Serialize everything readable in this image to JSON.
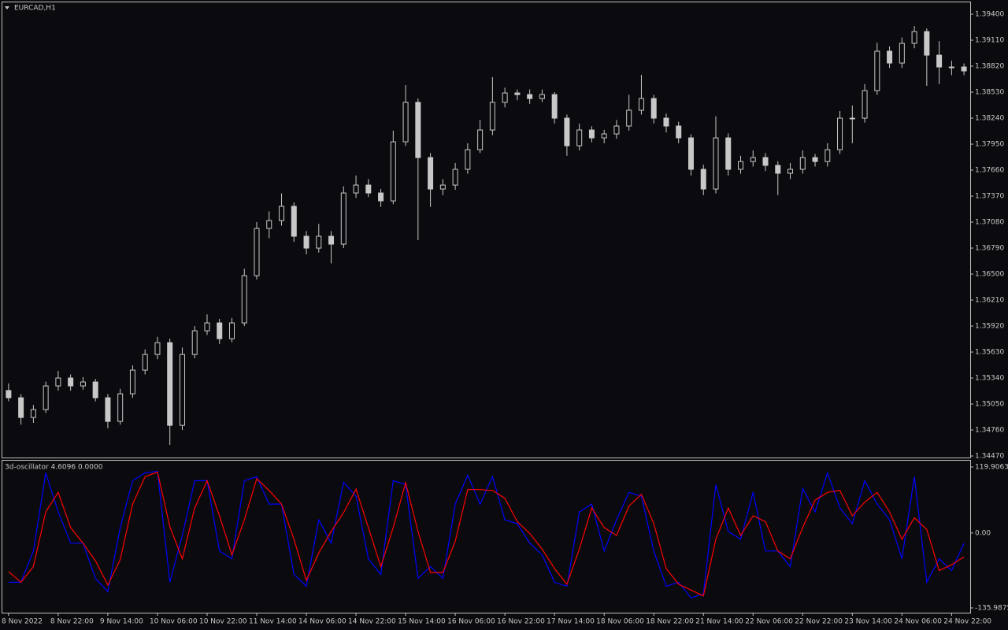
{
  "chart_data": [
    {
      "type": "candlestick",
      "title": "EURCAD,H1",
      "color": "#c8c8c8",
      "ylim": [
        1.34444,
        1.39532
      ],
      "yticks": [
        {
          "value": 1.394,
          "label": "1.39400"
        },
        {
          "value": 1.3911,
          "label": "1.39110"
        },
        {
          "value": 1.3882,
          "label": "1.38820"
        },
        {
          "value": 1.3853,
          "label": "1.38530"
        },
        {
          "value": 1.3824,
          "label": "1.38240"
        },
        {
          "value": 1.3795,
          "label": "1.37950"
        },
        {
          "value": 1.3766,
          "label": "1.37660"
        },
        {
          "value": 1.3737,
          "label": "1.37370"
        },
        {
          "value": 1.3708,
          "label": "1.37080"
        },
        {
          "value": 1.3679,
          "label": "1.36790"
        },
        {
          "value": 1.365,
          "label": "1.36500"
        },
        {
          "value": 1.3621,
          "label": "1.36210"
        },
        {
          "value": 1.3592,
          "label": "1.35920"
        },
        {
          "value": 1.3563,
          "label": "1.35630"
        },
        {
          "value": 1.3534,
          "label": "1.35340"
        },
        {
          "value": 1.3505,
          "label": "1.35050"
        },
        {
          "value": 1.3476,
          "label": "1.34760"
        },
        {
          "value": 1.3447,
          "label": "1.34470"
        }
      ],
      "ohlc": [
        [
          1.352,
          1.3528,
          1.3508,
          1.3512
        ],
        [
          1.3512,
          1.3516,
          1.3482,
          1.349
        ],
        [
          1.349,
          1.3504,
          1.3484,
          1.34988
        ],
        [
          1.34988,
          1.353,
          1.3495,
          1.35252
        ],
        [
          1.35252,
          1.3542,
          1.352,
          1.3534
        ],
        [
          1.3534,
          1.3538,
          1.352,
          1.35252
        ],
        [
          1.35252,
          1.3535,
          1.3521,
          1.35296
        ],
        [
          1.35296,
          1.3533,
          1.3508,
          1.3512
        ],
        [
          1.3512,
          1.3516,
          1.3478,
          1.34856
        ],
        [
          1.34856,
          1.3522,
          1.3482,
          1.35164
        ],
        [
          1.35164,
          1.3548,
          1.3512,
          1.35428
        ],
        [
          1.35428,
          1.3566,
          1.3538,
          1.35603
        ],
        [
          1.35603,
          1.358,
          1.3555,
          1.35735
        ],
        [
          1.35735,
          1.3578,
          1.34593,
          1.34812
        ],
        [
          1.34812,
          1.3568,
          1.3476,
          1.35603
        ],
        [
          1.35603,
          1.3592,
          1.3556,
          1.35867
        ],
        [
          1.35867,
          1.3605,
          1.3582,
          1.35955
        ],
        [
          1.35955,
          1.36,
          1.3572,
          1.35779
        ],
        [
          1.35779,
          1.3601,
          1.3574,
          1.35955
        ],
        [
          1.35955,
          1.3656,
          1.3592,
          1.36482
        ],
        [
          1.36482,
          1.3708,
          1.3644,
          1.37009
        ],
        [
          1.37009,
          1.372,
          1.369,
          1.37097
        ],
        [
          1.37097,
          1.374,
          1.3704,
          1.37256
        ],
        [
          1.37256,
          1.373,
          1.3686,
          1.36922
        ],
        [
          1.36922,
          1.3698,
          1.3672,
          1.3679
        ],
        [
          1.3679,
          1.3706,
          1.3674,
          1.36922
        ],
        [
          1.36922,
          1.3698,
          1.3662,
          1.36834
        ],
        [
          1.36834,
          1.3748,
          1.3679,
          1.37405
        ],
        [
          1.37405,
          1.376,
          1.3735,
          1.37493
        ],
        [
          1.37493,
          1.3756,
          1.3736,
          1.37405
        ],
        [
          1.37405,
          1.3745,
          1.3725,
          1.37317
        ],
        [
          1.37317,
          1.381,
          1.3728,
          1.37976
        ],
        [
          1.37976,
          1.38609,
          1.3793,
          1.38416
        ],
        [
          1.38416,
          1.3846,
          1.36878,
          1.378
        ],
        [
          1.378,
          1.3785,
          1.3725,
          1.37449
        ],
        [
          1.37449,
          1.3756,
          1.3738,
          1.37493
        ],
        [
          1.37493,
          1.3774,
          1.3744,
          1.37669
        ],
        [
          1.37669,
          1.3796,
          1.3762,
          1.37888
        ],
        [
          1.37888,
          1.3822,
          1.3785,
          1.38108
        ],
        [
          1.38108,
          1.38697,
          1.3805,
          1.38416
        ],
        [
          1.38416,
          1.3858,
          1.3836,
          1.38521
        ],
        [
          1.38521,
          1.3856,
          1.3844,
          1.38503
        ],
        [
          1.38503,
          1.3856,
          1.384,
          1.38459
        ],
        [
          1.38459,
          1.3856,
          1.3842,
          1.38503
        ],
        [
          1.38503,
          1.3853,
          1.3818,
          1.3824
        ],
        [
          1.3824,
          1.3828,
          1.3782,
          1.37932
        ],
        [
          1.37932,
          1.3818,
          1.3788,
          1.38108
        ],
        [
          1.38108,
          1.3815,
          1.3797,
          1.3802
        ],
        [
          1.3802,
          1.3811,
          1.3796,
          1.38064
        ],
        [
          1.38064,
          1.3822,
          1.3801,
          1.38152
        ],
        [
          1.38152,
          1.385,
          1.381,
          1.38328
        ],
        [
          1.38328,
          1.38723,
          1.3828,
          1.38459
        ],
        [
          1.38459,
          1.385,
          1.3818,
          1.3824
        ],
        [
          1.3824,
          1.3829,
          1.3808,
          1.38152
        ],
        [
          1.38152,
          1.382,
          1.3796,
          1.3802
        ],
        [
          1.3802,
          1.3806,
          1.376,
          1.37669
        ],
        [
          1.37669,
          1.3772,
          1.3738,
          1.37449
        ],
        [
          1.37449,
          1.3826,
          1.374,
          1.3802
        ],
        [
          1.3802,
          1.3807,
          1.376,
          1.37669
        ],
        [
          1.37669,
          1.3782,
          1.3762,
          1.37756
        ],
        [
          1.37756,
          1.3788,
          1.377,
          1.378
        ],
        [
          1.378,
          1.3785,
          1.3765,
          1.37713
        ],
        [
          1.37713,
          1.3776,
          1.3738,
          1.37625
        ],
        [
          1.37625,
          1.3774,
          1.3756,
          1.37669
        ],
        [
          1.37669,
          1.3788,
          1.3762,
          1.378
        ],
        [
          1.378,
          1.3784,
          1.377,
          1.37756
        ],
        [
          1.37756,
          1.3796,
          1.377,
          1.37888
        ],
        [
          1.37888,
          1.3832,
          1.3784,
          1.3824
        ],
        [
          1.3824,
          1.3838,
          1.3796,
          1.3824
        ],
        [
          1.3824,
          1.3862,
          1.3819,
          1.38547
        ],
        [
          1.38547,
          1.3908,
          1.385,
          1.38987
        ],
        [
          1.38987,
          1.3904,
          1.388,
          1.38855
        ],
        [
          1.38855,
          1.3914,
          1.388,
          1.39075
        ],
        [
          1.39075,
          1.39268,
          1.3902,
          1.39206
        ],
        [
          1.39206,
          1.3924,
          1.386,
          1.38943
        ],
        [
          1.38943,
          1.391,
          1.3862,
          1.38811
        ],
        [
          1.38811,
          1.3888,
          1.3872,
          1.38811
        ],
        [
          1.38811,
          1.3885,
          1.3872,
          1.38767
        ]
      ]
    },
    {
      "type": "line",
      "title": "3d-oscillator 4.6096 0.0000",
      "ylim": [
        -144.6,
        131.3
      ],
      "yticks": [
        119.9063,
        {
          "value": 0,
          "label": "0.00"
        },
        -135.9875
      ],
      "categories": [
        "8 Nov 2022",
        null,
        null,
        null,
        "8 Nov 22:00",
        null,
        null,
        null,
        "9 Nov 14:00",
        null,
        null,
        null,
        "10 Nov 06:00",
        null,
        null,
        null,
        "10 Nov 22:00",
        null,
        null,
        null,
        "11 Nov 14:00",
        null,
        null,
        null,
        "14 Nov 06:00",
        null,
        null,
        null,
        "14 Nov 22:00",
        null,
        null,
        null,
        "15 Nov 14:00",
        null,
        null,
        null,
        "16 Nov 06:00",
        null,
        null,
        null,
        "16 Nov 22:00",
        null,
        null,
        null,
        "17 Nov 14:00",
        null,
        null,
        null,
        "18 Nov 06:00",
        null,
        null,
        null,
        "18 Nov 22:00",
        null,
        null,
        null,
        "21 Nov 14:00",
        null,
        null,
        null,
        "22 Nov 06:00",
        null,
        null,
        null,
        "22 Nov 22:00",
        null,
        null,
        null,
        "23 Nov 14:00",
        null,
        null,
        null,
        "24 Nov 06:00",
        null,
        null,
        null,
        "24 Nov 22:00",
        null
      ],
      "series": [
        {
          "color": "#0000ff",
          "values": [
            -89.4,
            -89.4,
            -32.6,
            109.2,
            38.3,
            -18.4,
            -18.4,
            -82.3,
            -106.4,
            9.9,
            95.0,
            109.2,
            112.1,
            -89.4,
            -4.3,
            95.0,
            95.0,
            -32.6,
            -46.8,
            95.0,
            102.1,
            52.5,
            52.5,
            -75.2,
            -96.5,
            24.1,
            -18.4,
            92.2,
            66.7,
            -46.8,
            -75.2,
            95.0,
            87.9,
            -82.3,
            -61.0,
            -82.3,
            52.5,
            105.0,
            52.5,
            102.1,
            24.1,
            17.0,
            -18.4,
            -39.7,
            -89.4,
            -96.5,
            38.3,
            52.5,
            -32.6,
            24.1,
            73.8,
            66.7,
            -32.6,
            -96.5,
            -89.4,
            -117.7,
            -110.6,
            87.9,
            2.8,
            -11.3,
            73.8,
            -32.6,
            -32.6,
            -61.0,
            80.9,
            38.3,
            109.2,
            45.4,
            17.0,
            95.0,
            52.5,
            24.1,
            -46.8,
            102.1,
            -89.4,
            -46.8,
            -68.1,
            -18.4
          ]
        },
        {
          "color": "#ff0000",
          "values": [
            -70,
            -89.4,
            -61.0,
            38.3,
            73.8,
            10.0,
            -18.4,
            -50.4,
            -94.4,
            -48.3,
            52.5,
            102.1,
            110.7,
            11.4,
            -46.9,
            45.4,
            95.0,
            31.2,
            -39.7,
            24.1,
            98.6,
            77.3,
            52.5,
            -11.4,
            -85.9,
            -36.2,
            2.9,
            36.9,
            79.5,
            10.0,
            -61.0,
            9.9,
            91.5,
            2.8,
            -71.7,
            -71.7,
            -14.9,
            78.8,
            78.8,
            77.3,
            63.1,
            20.6,
            -0.7,
            -29.1,
            -64.6,
            -93.0,
            -29.1,
            45.4,
            10.0,
            -4.3,
            49.0,
            70.3,
            17.1,
            -64.6,
            -93.0,
            -103.6,
            -114.2,
            -11.4,
            45.4,
            -4.3,
            31.3,
            20.6,
            -32.6,
            -46.8,
            10.0,
            59.6,
            73.8,
            77.3,
            31.2,
            56.0,
            73.8,
            38.3,
            -11.4,
            27.7,
            6.4,
            -68.1,
            -57.5,
            -43.3
          ]
        }
      ]
    }
  ]
}
